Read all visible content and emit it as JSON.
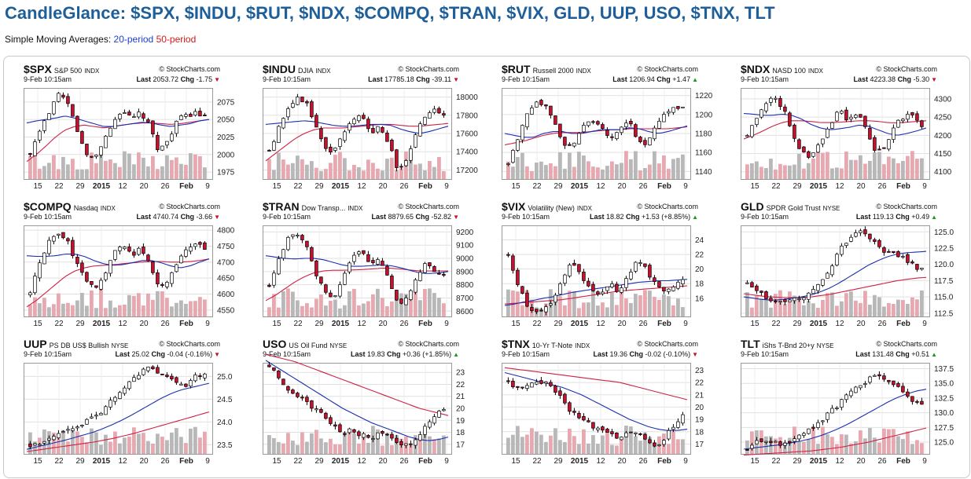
{
  "page": {
    "title": "CandleGlance: $SPX, $INDU, $RUT, $NDX, $COMPQ, $TRAN, $VIX, GLD, UUP, USO, $TNX, TLT",
    "sma_prefix": "Simple Moving Averages:",
    "sma20": "20-period",
    "sma50": "50-period"
  },
  "colors": {
    "sma20": "#1a2fb0",
    "sma50": "#cc2244",
    "down_candle": "#c8102e",
    "up_candle": "#ffffff",
    "volume_up": "#b8b8b8",
    "volume_down": "#e8a8b0",
    "title": "#1f5f99"
  },
  "chart_data": [
    {
      "type": "candlestick",
      "symbol": "$SPX",
      "name": "S&P 500",
      "exchange": "INDX",
      "source": "© StockCharts.com",
      "date": "9-Feb 10:15am",
      "last_label": "Last",
      "last": "2053.72",
      "chg_label": "Chg",
      "chg": "-1.75",
      "direction": "down",
      "x_ticks": [
        "15",
        "22",
        "29",
        "2015",
        "12",
        "20",
        "26",
        "Feb",
        "9"
      ],
      "y_ticks": [
        "2075",
        "2050",
        "2025",
        "2000",
        "1975"
      ],
      "ylim": [
        1965,
        2095
      ],
      "close_path": [
        2000,
        2030,
        2060,
        2085,
        2075,
        2040,
        2000,
        1995,
        2020,
        2045,
        2065,
        2050,
        2060,
        2040,
        2005,
        2020,
        2050,
        2055,
        2060,
        2053
      ],
      "sma20_path": [
        2045,
        2048,
        2050,
        2052,
        2055,
        2052,
        2048,
        2044,
        2040,
        2040,
        2042,
        2044,
        2046,
        2045,
        2042,
        2040,
        2042,
        2044,
        2048,
        2050
      ],
      "sma50_path": [
        1990,
        2000,
        2012,
        2025,
        2035,
        2040,
        2042,
        2040,
        2038,
        2040,
        2042,
        2044,
        2045,
        2045,
        2044,
        2043,
        2044,
        2046,
        2048,
        2050
      ]
    },
    {
      "type": "candlestick",
      "symbol": "$INDU",
      "name": "DJIA",
      "exchange": "INDX",
      "source": "© StockCharts.com",
      "date": "9-Feb 10:15am",
      "last_label": "Last",
      "last": "17785.18",
      "chg_label": "Chg",
      "chg": "-39.11",
      "direction": "down",
      "x_ticks": [
        "15",
        "22",
        "29",
        "2015",
        "12",
        "20",
        "26",
        "Feb",
        "9"
      ],
      "y_ticks": [
        "18000",
        "17800",
        "17600",
        "17400",
        "17200"
      ],
      "ylim": [
        17100,
        18100
      ],
      "close_path": [
        17400,
        17650,
        17850,
        18000,
        17950,
        17700,
        17450,
        17400,
        17600,
        17750,
        17800,
        17600,
        17700,
        17500,
        17200,
        17300,
        17600,
        17800,
        17850,
        17785
      ],
      "sma20_path": [
        17700,
        17710,
        17720,
        17730,
        17740,
        17730,
        17710,
        17690,
        17680,
        17680,
        17690,
        17700,
        17700,
        17690,
        17650,
        17620,
        17600,
        17620,
        17650,
        17680
      ],
      "sma50_path": [
        17300,
        17380,
        17460,
        17540,
        17600,
        17640,
        17660,
        17660,
        17660,
        17670,
        17680,
        17690,
        17700,
        17700,
        17690,
        17680,
        17680,
        17690,
        17700,
        17710
      ]
    },
    {
      "type": "candlestick",
      "symbol": "$RUT",
      "name": "Russell 2000",
      "exchange": "INDX",
      "source": "© StockCharts.com",
      "date": "9-Feb 10:15am",
      "last_label": "Last",
      "last": "1206.94",
      "chg_label": "Chg",
      "chg": "+1.47",
      "direction": "up",
      "x_ticks": [
        "15",
        "22",
        "29",
        "2015",
        "12",
        "20",
        "26",
        "Feb",
        "9"
      ],
      "y_ticks": [
        "1220",
        "1200",
        "1180",
        "1160",
        "1140"
      ],
      "ylim": [
        1132,
        1228
      ],
      "close_path": [
        1150,
        1175,
        1200,
        1215,
        1210,
        1190,
        1170,
        1165,
        1185,
        1195,
        1190,
        1175,
        1180,
        1195,
        1175,
        1170,
        1185,
        1200,
        1210,
        1207
      ],
      "sma20_path": [
        1180,
        1178,
        1176,
        1176,
        1180,
        1182,
        1182,
        1180,
        1180,
        1182,
        1184,
        1184,
        1184,
        1186,
        1185,
        1182,
        1180,
        1182,
        1185,
        1188
      ],
      "sma50_path": [
        1168,
        1170,
        1172,
        1175,
        1178,
        1180,
        1181,
        1181,
        1181,
        1182,
        1183,
        1184,
        1184,
        1185,
        1185,
        1185,
        1185,
        1185,
        1186,
        1187
      ]
    },
    {
      "type": "candlestick",
      "symbol": "$NDX",
      "name": "NASD 100",
      "exchange": "INDX",
      "source": "© StockCharts.com",
      "date": "9-Feb 10:15am",
      "last_label": "Last",
      "last": "4223.38",
      "chg_label": "Chg",
      "chg": "-5.30",
      "direction": "down",
      "x_ticks": [
        "15",
        "22",
        "29",
        "2015",
        "12",
        "20",
        "26",
        "Feb",
        "9"
      ],
      "y_ticks": [
        "4300",
        "4250",
        "4200",
        "4150",
        "4100"
      ],
      "ylim": [
        4080,
        4330
      ],
      "close_path": [
        4200,
        4250,
        4290,
        4300,
        4270,
        4200,
        4150,
        4140,
        4180,
        4230,
        4270,
        4240,
        4260,
        4220,
        4150,
        4170,
        4230,
        4250,
        4260,
        4223
      ],
      "sma20_path": [
        4260,
        4258,
        4255,
        4255,
        4258,
        4255,
        4245,
        4230,
        4220,
        4215,
        4218,
        4222,
        4228,
        4225,
        4215,
        4205,
        4200,
        4205,
        4212,
        4220
      ],
      "sma50_path": [
        4190,
        4200,
        4212,
        4225,
        4235,
        4240,
        4240,
        4238,
        4235,
        4235,
        4236,
        4238,
        4240,
        4240,
        4238,
        4235,
        4234,
        4236,
        4238,
        4240
      ]
    },
    {
      "type": "candlestick",
      "symbol": "$COMPQ",
      "name": "Nasdaq",
      "exchange": "INDX",
      "source": "© StockCharts.com",
      "date": "9-Feb 10:15am",
      "last_label": "Last",
      "last": "4740.74",
      "chg_label": "Chg",
      "chg": "-3.66",
      "direction": "down",
      "x_ticks": [
        "15",
        "22",
        "29",
        "2015",
        "12",
        "20",
        "26",
        "Feb",
        "9"
      ],
      "y_ticks": [
        "4800",
        "4750",
        "4700",
        "4650",
        "4600",
        "4550"
      ],
      "ylim": [
        4530,
        4815
      ],
      "close_path": [
        4600,
        4700,
        4760,
        4790,
        4770,
        4700,
        4640,
        4620,
        4660,
        4720,
        4760,
        4720,
        4740,
        4700,
        4620,
        4640,
        4700,
        4740,
        4760,
        4741
      ],
      "sma20_path": [
        4720,
        4718,
        4718,
        4720,
        4725,
        4725,
        4718,
        4705,
        4695,
        4690,
        4692,
        4698,
        4705,
        4705,
        4698,
        4688,
        4682,
        4688,
        4700,
        4710
      ],
      "sma50_path": [
        4560,
        4580,
        4605,
        4630,
        4655,
        4672,
        4682,
        4688,
        4690,
        4692,
        4695,
        4698,
        4700,
        4702,
        4702,
        4700,
        4700,
        4702,
        4705,
        4710
      ]
    },
    {
      "type": "candlestick",
      "symbol": "$TRAN",
      "name": "Dow Transp...",
      "exchange": "INDX",
      "source": "© StockCharts.com",
      "date": "9-Feb 10:15am",
      "last_label": "Last",
      "last": "8879.65",
      "chg_label": "Chg",
      "chg": "-52.82",
      "direction": "down",
      "x_ticks": [
        "15",
        "22",
        "29",
        "2015",
        "12",
        "20",
        "26",
        "Feb",
        "9"
      ],
      "y_ticks": [
        "9200",
        "9100",
        "9000",
        "8900",
        "8800",
        "8700",
        "8600"
      ],
      "ylim": [
        8560,
        9250
      ],
      "close_path": [
        8800,
        9000,
        9150,
        9200,
        9100,
        8900,
        8750,
        8700,
        8850,
        9000,
        9050,
        8950,
        9000,
        8850,
        8650,
        8700,
        8850,
        8950,
        8900,
        8880
      ],
      "sma20_path": [
        9020,
        9010,
        9000,
        8995,
        9000,
        9000,
        8990,
        8970,
        8950,
        8940,
        8940,
        8945,
        8950,
        8945,
        8930,
        8910,
        8890,
        8885,
        8890,
        8900
      ],
      "sma50_path": [
        8680,
        8720,
        8770,
        8820,
        8860,
        8890,
        8905,
        8910,
        8910,
        8912,
        8915,
        8920,
        8925,
        8925,
        8920,
        8912,
        8905,
        8905,
        8905,
        8905
      ]
    },
    {
      "type": "candlestick",
      "symbol": "$VIX",
      "name": "Volatility (New)",
      "exchange": "INDX",
      "source": "© StockCharts.com",
      "date": "9-Feb 10:15am",
      "last_label": "Last",
      "last": "18.82",
      "chg_label": "Chg",
      "chg": "+1.53 (+8.85%)",
      "direction": "up",
      "x_ticks": [
        "15",
        "22",
        "29",
        "2015",
        "12",
        "20",
        "26",
        "Feb",
        "9"
      ],
      "y_ticks": [
        "24",
        "22",
        "20",
        "18",
        "16"
      ],
      "ylim": [
        13.5,
        26
      ],
      "close_path": [
        22,
        18,
        15,
        14,
        14.5,
        16,
        19,
        21,
        19,
        17,
        16.5,
        18,
        17,
        19,
        21,
        20,
        18,
        17,
        17.5,
        18.8
      ],
      "sma20_path": [
        15,
        15.2,
        15.5,
        15.7,
        16,
        16.2,
        16.5,
        16.8,
        17,
        17.2,
        17.4,
        17.6,
        17.8,
        18,
        18.2,
        18.3,
        18.4,
        18.4,
        18.5,
        18.6
      ],
      "sma50_path": [
        15.2,
        15.3,
        15.4,
        15.5,
        15.6,
        15.7,
        15.8,
        16,
        16.2,
        16.4,
        16.6,
        16.8,
        17,
        17.1,
        17.2,
        17.3,
        17.4,
        17.5,
        17.6,
        17.7
      ]
    },
    {
      "type": "candlestick",
      "symbol": "GLD",
      "name": "SPDR Gold Trust",
      "exchange": "NYSE",
      "source": "© StockCharts.com",
      "date": "9-Feb 10:15am",
      "last_label": "Last",
      "last": "119.13",
      "chg_label": "Chg",
      "chg": "+0.49",
      "direction": "up",
      "x_ticks": [
        "15",
        "22",
        "29",
        "2015",
        "12",
        "20",
        "26",
        "Feb",
        "9"
      ],
      "y_ticks": [
        "125.0",
        "122.5",
        "120.0",
        "117.5",
        "115.0",
        "112.5"
      ],
      "ylim": [
        112,
        126
      ],
      "close_path": [
        117,
        116,
        115,
        114.5,
        114,
        114.5,
        115,
        116,
        117,
        119,
        122,
        124,
        125,
        124.5,
        123,
        122,
        121.5,
        121,
        120,
        119.1
      ],
      "sma20_path": [
        115,
        114.8,
        114.6,
        114.5,
        114.6,
        114.8,
        115,
        115.3,
        115.8,
        116.4,
        117.2,
        118.1,
        119,
        119.9,
        120.6,
        121.2,
        121.6,
        121.8,
        121.9,
        122
      ],
      "sma50_path": [
        115.5,
        115.3,
        115.1,
        115,
        114.9,
        114.9,
        114.9,
        115,
        115.2,
        115.4,
        115.7,
        116,
        116.3,
        116.6,
        116.9,
        117.2,
        117.5,
        117.7,
        117.9,
        118
      ]
    },
    {
      "type": "candlestick",
      "symbol": "UUP",
      "name": "PS DB US$ Bullish",
      "exchange": "NYSE",
      "source": "© StockCharts.com",
      "date": "9-Feb 10:15am",
      "last_label": "Last",
      "last": "25.02",
      "chg_label": "Chg",
      "chg": "-0.04 (-0.16%)",
      "direction": "down",
      "x_ticks": [
        "15",
        "22",
        "29",
        "2015",
        "12",
        "20",
        "26",
        "Feb",
        "9"
      ],
      "y_ticks": [
        "25.0",
        "24.5",
        "24.0",
        "23.5"
      ],
      "ylim": [
        23.3,
        25.3
      ],
      "close_path": [
        23.5,
        23.5,
        23.6,
        23.7,
        23.8,
        23.9,
        24,
        24.1,
        24.3,
        24.5,
        24.7,
        24.9,
        25.1,
        25.2,
        25.1,
        25,
        24.9,
        24.8,
        25,
        25.02
      ],
      "sma20_path": [
        23.4,
        23.45,
        23.5,
        23.55,
        23.6,
        23.66,
        23.72,
        23.78,
        23.86,
        23.95,
        24.05,
        24.16,
        24.28,
        24.4,
        24.52,
        24.62,
        24.7,
        24.75,
        24.8,
        24.85
      ],
      "sma50_path": [
        23.35,
        23.38,
        23.41,
        23.44,
        23.47,
        23.5,
        23.53,
        23.56,
        23.6,
        23.64,
        23.69,
        23.74,
        23.8,
        23.86,
        23.92,
        23.98,
        24.04,
        24.1,
        24.16,
        24.22
      ]
    },
    {
      "type": "candlestick",
      "symbol": "USO",
      "name": "US Oil Fund",
      "exchange": "NYSE",
      "source": "© StockCharts.com",
      "date": "9-Feb 10:15am",
      "last_label": "Last",
      "last": "19.83",
      "chg_label": "Chg",
      "chg": "+0.36 (+1.85%)",
      "direction": "up",
      "x_ticks": [
        "15",
        "22",
        "29",
        "2015",
        "12",
        "20",
        "26",
        "Feb",
        "9"
      ],
      "y_ticks": [
        "23",
        "22",
        "21",
        "20",
        "19",
        "18",
        "17"
      ],
      "ylim": [
        16.2,
        23.8
      ],
      "close_path": [
        23.5,
        22.5,
        21.5,
        21,
        20.5,
        20,
        19.2,
        18.5,
        18,
        18.2,
        17.8,
        17.5,
        18,
        17.6,
        17.2,
        17,
        17.5,
        18.5,
        19.5,
        19.83
      ],
      "sma20_path": [
        24,
        23.5,
        23,
        22.5,
        22,
        21.5,
        21,
        20.5,
        20,
        19.6,
        19.2,
        18.8,
        18.5,
        18.2,
        17.9,
        17.6,
        17.4,
        17.3,
        17.4,
        17.6
      ],
      "sma50_path": [
        24.5,
        24.3,
        24.1,
        23.9,
        23.6,
        23.3,
        23,
        22.7,
        22.4,
        22.1,
        21.8,
        21.5,
        21.2,
        20.9,
        20.6,
        20.3,
        20,
        19.8,
        19.6,
        19.4
      ]
    },
    {
      "type": "candlestick",
      "symbol": "$TNX",
      "name": "10-Yr T-Note",
      "exchange": "INDX",
      "source": "© StockCharts.com",
      "date": "9-Feb 10:15am",
      "last_label": "Last",
      "last": "19.36",
      "chg_label": "Chg",
      "chg": "-0.02 (-0.10%)",
      "direction": "down",
      "x_ticks": [
        "15",
        "22",
        "29",
        "2015",
        "12",
        "20",
        "26",
        "Feb",
        "9"
      ],
      "y_ticks": [
        "23",
        "22",
        "21",
        "20",
        "19",
        "18",
        "17"
      ],
      "ylim": [
        16.2,
        23.6
      ],
      "close_path": [
        22,
        21.5,
        21.8,
        22.2,
        22,
        21.5,
        20.5,
        19.5,
        19,
        18.5,
        18.2,
        18,
        17.5,
        17.8,
        18,
        17.2,
        16.8,
        17.5,
        18.5,
        19.36
      ],
      "sma20_path": [
        22.8,
        22.6,
        22.4,
        22.2,
        22,
        21.8,
        21.6,
        21.3,
        21,
        20.6,
        20.2,
        19.8,
        19.4,
        19,
        18.7,
        18.4,
        18.2,
        18.1,
        18.1,
        18.2
      ],
      "sma50_path": [
        23.2,
        23.1,
        23,
        22.9,
        22.8,
        22.7,
        22.6,
        22.5,
        22.4,
        22.3,
        22.2,
        22.1,
        22,
        21.8,
        21.6,
        21.4,
        21.2,
        21,
        20.8,
        20.6
      ]
    },
    {
      "type": "candlestick",
      "symbol": "TLT",
      "name": "iShs T-Bnd 20+y",
      "exchange": "NYSE",
      "source": "© StockCharts.com",
      "date": "9-Feb 10:15am",
      "last_label": "Last",
      "last": "131.48",
      "chg_label": "Chg",
      "chg": "+0.51",
      "direction": "up",
      "x_ticks": [
        "15",
        "22",
        "29",
        "2015",
        "12",
        "20",
        "26",
        "Feb",
        "9"
      ],
      "y_ticks": [
        "137.5",
        "135.0",
        "132.5",
        "130.0",
        "127.5",
        "125.0"
      ],
      "ylim": [
        123,
        138.5
      ],
      "close_path": [
        124,
        125,
        125.5,
        125,
        124.5,
        125.5,
        126.5,
        127.5,
        128.5,
        130,
        131.5,
        133,
        134.5,
        135.5,
        136.5,
        136,
        134.5,
        133.5,
        132,
        131.5
      ],
      "sma20_path": [
        123.8,
        124,
        124.2,
        124.4,
        124.6,
        124.9,
        125.2,
        125.6,
        126.1,
        126.7,
        127.4,
        128.2,
        129.1,
        130,
        130.9,
        131.8,
        132.6,
        133.2,
        133.7,
        134
      ],
      "sma50_path": [
        122.8,
        122.9,
        123,
        123.1,
        123.2,
        123.3,
        123.4,
        123.5,
        123.7,
        123.9,
        124.1,
        124.4,
        124.7,
        125,
        125.4,
        125.8,
        126.2,
        126.6,
        127,
        127.4
      ]
    }
  ]
}
